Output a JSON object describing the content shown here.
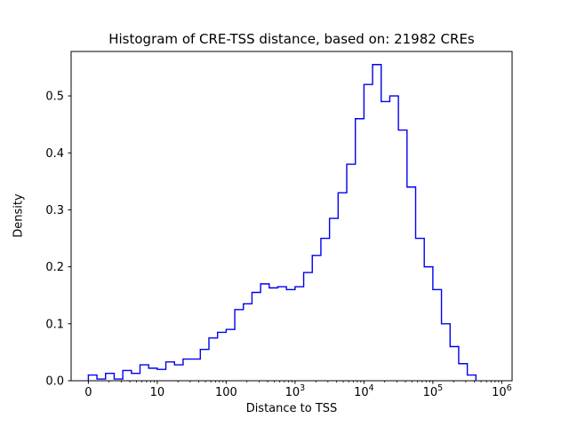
{
  "figure": {
    "background": "#ffffff",
    "spine_color": "#000000"
  },
  "chart_data": {
    "type": "histogram-step",
    "title": "Histogram of CRE-TSS distance, based on: 21982 CREs",
    "xlabel": "Distance to TSS",
    "ylabel": "Density",
    "n_cres": 21982,
    "line_color": "#0000ee",
    "x_scale": "symlog",
    "x_axis_units_note": "u axis units: u=0 is distance 0, u=1 is 10, u=2 is 100, u=3 is 1e3, u=4 is 1e4, u=5 is 1e5, u=6 is 1e6",
    "xlim_u": [
      -0.25,
      6.15
    ],
    "ylim": [
      0,
      0.578
    ],
    "grid": false,
    "legend": "none",
    "x_ticks": [
      {
        "u": 0,
        "label": "0"
      },
      {
        "u": 1,
        "label": "10"
      },
      {
        "u": 2,
        "label": "100"
      },
      {
        "u": 3,
        "label": "10^3"
      },
      {
        "u": 4,
        "label": "10^4"
      },
      {
        "u": 5,
        "label": "10^5"
      },
      {
        "u": 6,
        "label": "10^6"
      }
    ],
    "y_ticks": [
      {
        "v": 0.0,
        "label": "0.0"
      },
      {
        "v": 0.1,
        "label": "0.1"
      },
      {
        "v": 0.2,
        "label": "0.2"
      },
      {
        "v": 0.3,
        "label": "0.3"
      },
      {
        "v": 0.4,
        "label": "0.4"
      },
      {
        "v": 0.5,
        "label": "0.5"
      }
    ],
    "bins": {
      "start_u": 0,
      "width_u": 0.125,
      "densities": [
        0.01,
        0.003,
        0.013,
        0.003,
        0.018,
        0.013,
        0.028,
        0.022,
        0.02,
        0.033,
        0.028,
        0.038,
        0.038,
        0.055,
        0.075,
        0.085,
        0.09,
        0.125,
        0.135,
        0.155,
        0.17,
        0.163,
        0.165,
        0.16,
        0.165,
        0.19,
        0.22,
        0.25,
        0.285,
        0.33,
        0.38,
        0.46,
        0.52,
        0.555,
        0.49,
        0.5,
        0.44,
        0.34,
        0.25,
        0.2,
        0.16,
        0.1,
        0.06,
        0.03,
        0.01
      ]
    }
  }
}
